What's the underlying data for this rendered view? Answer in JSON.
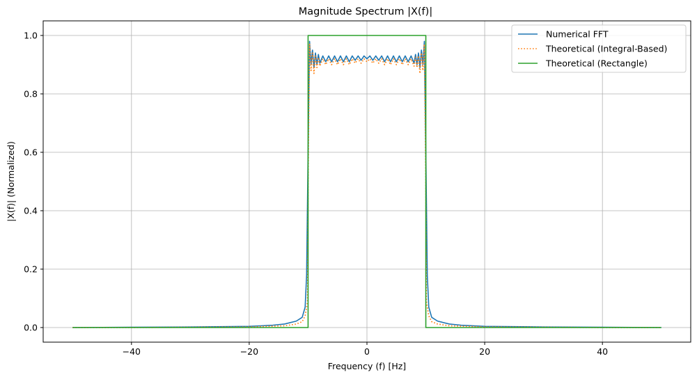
{
  "chart_data": {
    "type": "line",
    "title": "Magnitude Spectrum |X(f)|",
    "xlabel": "Frequency (f) [Hz]",
    "ylabel": "|X(f)| (Normalized)",
    "xlim": [
      -55,
      55
    ],
    "ylim": [
      -0.05,
      1.05
    ],
    "xticks": [
      -40,
      -20,
      0,
      20,
      40
    ],
    "xtick_labels": [
      "−40",
      "−20",
      "0",
      "20",
      "40"
    ],
    "yticks": [
      0.0,
      0.2,
      0.4,
      0.6,
      0.8,
      1.0
    ],
    "ytick_labels": [
      "0.0",
      "0.2",
      "0.4",
      "0.6",
      "0.8",
      "1.0"
    ],
    "grid": true,
    "legend_position": "top-right",
    "series": [
      {
        "name": "Numerical FFT",
        "color": "#1f77b4",
        "style": "solid",
        "x": [
          -50,
          -40,
          -30,
          -20,
          -16,
          -14,
          -12,
          -11,
          -10.5,
          -10.25,
          -10,
          -9.75,
          -9.5,
          -9.25,
          -9.0,
          -8.75,
          -8.5,
          -8.25,
          -8.0,
          -7.5,
          -7.0,
          -6.5,
          -6.0,
          -5.5,
          -5.0,
          -4.5,
          -4.0,
          -3.5,
          -3.0,
          -2.5,
          -2.0,
          -1.5,
          -1.0,
          -0.5,
          0,
          0.5,
          1.0,
          1.5,
          2.0,
          2.5,
          3.0,
          3.5,
          4.0,
          4.5,
          5.0,
          5.5,
          6.0,
          6.5,
          7.0,
          7.5,
          8.0,
          8.25,
          8.5,
          8.75,
          9.0,
          9.25,
          9.5,
          9.75,
          10,
          10.25,
          10.5,
          11,
          12,
          14,
          16,
          20,
          30,
          40,
          50
        ],
        "y": [
          0.0,
          0.001,
          0.002,
          0.004,
          0.008,
          0.012,
          0.022,
          0.035,
          0.07,
          0.18,
          0.6,
          0.98,
          0.9,
          0.95,
          0.89,
          0.94,
          0.9,
          0.935,
          0.905,
          0.93,
          0.91,
          0.93,
          0.91,
          0.93,
          0.91,
          0.93,
          0.91,
          0.93,
          0.91,
          0.93,
          0.915,
          0.93,
          0.915,
          0.93,
          0.92,
          0.93,
          0.915,
          0.93,
          0.915,
          0.93,
          0.91,
          0.93,
          0.91,
          0.93,
          0.91,
          0.93,
          0.91,
          0.93,
          0.91,
          0.93,
          0.905,
          0.935,
          0.9,
          0.94,
          0.89,
          0.95,
          0.9,
          0.98,
          0.6,
          0.18,
          0.07,
          0.035,
          0.022,
          0.012,
          0.008,
          0.004,
          0.002,
          0.001,
          0.0
        ]
      },
      {
        "name": "Theoretical (Integral-Based)",
        "color": "#ff7f0e",
        "style": "dotted",
        "x": [
          -50,
          -40,
          -30,
          -20,
          -14,
          -12,
          -11,
          -10.5,
          -10.25,
          -10.1,
          -10,
          -9.75,
          -9.5,
          -9.25,
          -9.0,
          -8.75,
          -8.5,
          -8.25,
          -8.0,
          -7.5,
          -7.0,
          -6.5,
          -6.0,
          -5.5,
          -5.0,
          -4.5,
          -4.0,
          -3.5,
          -3.0,
          -2.5,
          -2.0,
          -1.5,
          -1.0,
          -0.5,
          0,
          0.5,
          1.0,
          1.5,
          2.0,
          2.5,
          3.0,
          3.5,
          4.0,
          4.5,
          5.0,
          5.5,
          6.0,
          6.5,
          7.0,
          7.5,
          8.0,
          8.25,
          8.5,
          8.75,
          9.0,
          9.25,
          9.5,
          9.75,
          10,
          10.1,
          10.25,
          10.5,
          11,
          12,
          14,
          20,
          30,
          40,
          50
        ],
        "y": [
          0.0,
          0.0,
          0.001,
          0.002,
          0.006,
          0.012,
          0.02,
          0.04,
          0.07,
          0.09,
          0.5,
          0.97,
          0.88,
          0.94,
          0.87,
          0.93,
          0.89,
          0.925,
          0.895,
          0.92,
          0.9,
          0.92,
          0.9,
          0.92,
          0.9,
          0.92,
          0.9,
          0.92,
          0.9,
          0.92,
          0.905,
          0.92,
          0.905,
          0.92,
          0.91,
          0.92,
          0.905,
          0.92,
          0.905,
          0.92,
          0.9,
          0.92,
          0.9,
          0.92,
          0.9,
          0.92,
          0.9,
          0.92,
          0.9,
          0.92,
          0.895,
          0.925,
          0.89,
          0.93,
          0.87,
          0.94,
          0.88,
          0.97,
          0.5,
          0.09,
          0.07,
          0.04,
          0.02,
          0.012,
          0.006,
          0.002,
          0.001,
          0.0,
          0.0
        ]
      },
      {
        "name": "Theoretical (Rectangle)",
        "color": "#2ca02c",
        "style": "solid",
        "x": [
          -50,
          -10,
          -10,
          10,
          10,
          50
        ],
        "y": [
          0,
          0,
          1,
          1,
          0,
          0
        ]
      }
    ]
  }
}
